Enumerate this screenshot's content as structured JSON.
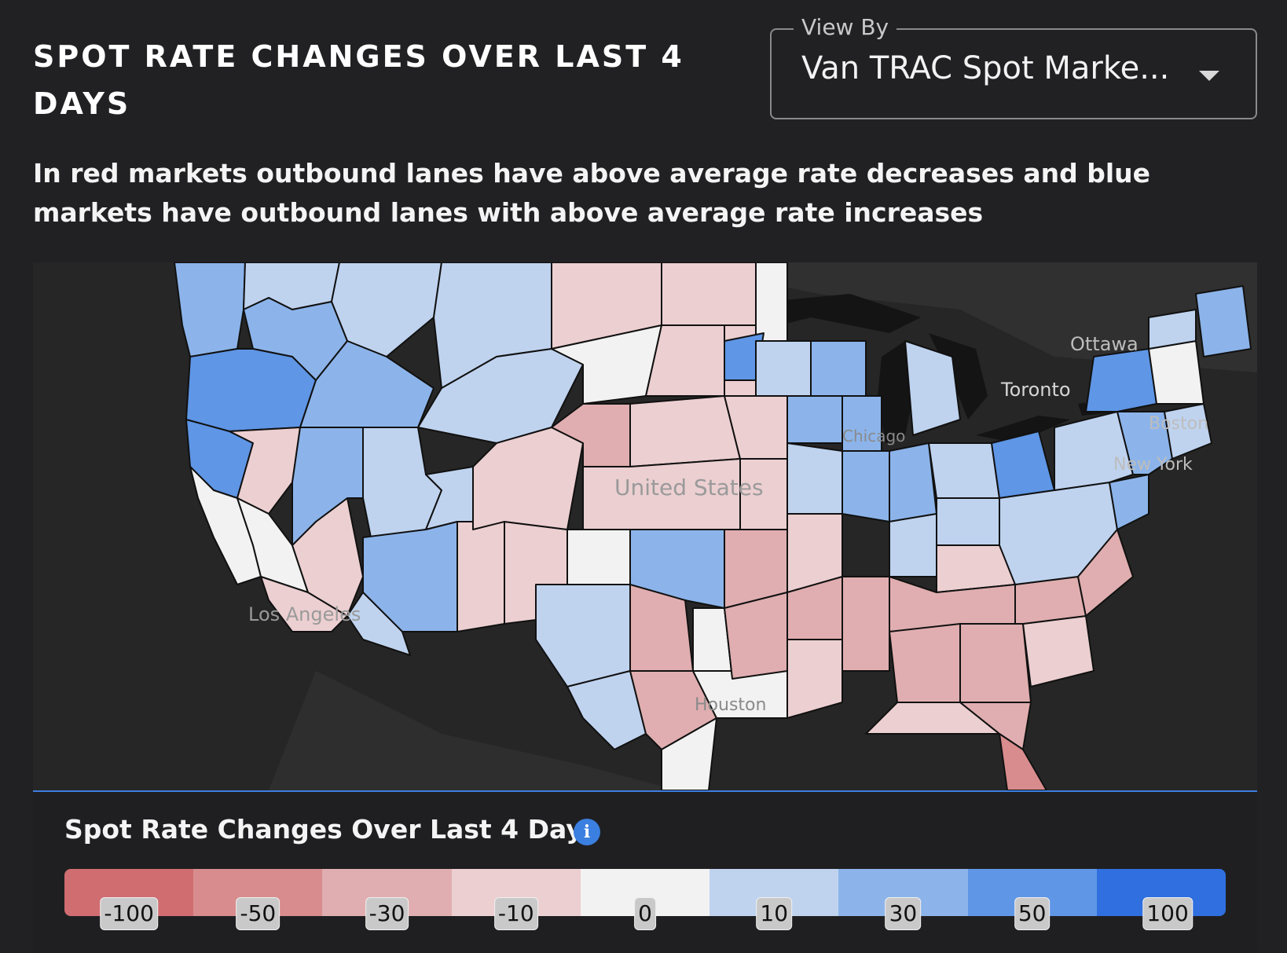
{
  "header": {
    "title": "SPOT RATE CHANGES OVER LAST 4 DAYS",
    "subtitle": "In red markets outbound lanes have above average rate decreases and blue markets have outbound lanes with above average rate increases"
  },
  "view_by": {
    "label": "View By",
    "value": "Van TRAC Spot Marke...",
    "icon": "chevron-down-icon"
  },
  "map": {
    "labels": {
      "ottawa": "Ottawa",
      "toronto": "Toronto",
      "boston": "Boston",
      "new_york": "New York",
      "united_states": "United States",
      "los_angeles": "Los Angeles",
      "houston": "Houston",
      "chicago": "Chicago"
    },
    "colors": {
      "water": "#262626",
      "land": "#333333",
      "border": "#111111"
    }
  },
  "legend": {
    "title": "Spot Rate Changes Over Last 4 Days",
    "info_icon": "info-icon",
    "stops": [
      {
        "label": "-100",
        "color": "#cf6d71"
      },
      {
        "label": "-50",
        "color": "#d88c8d"
      },
      {
        "label": "-30",
        "color": "#e0aeb0"
      },
      {
        "label": "-10",
        "color": "#eccfd1"
      },
      {
        "label": "0",
        "color": "#f2f2f2"
      },
      {
        "label": "10",
        "color": "#bfd3ef"
      },
      {
        "label": "30",
        "color": "#8cb4ea"
      },
      {
        "label": "50",
        "color": "#5f96e6"
      },
      {
        "label": "100",
        "color": "#2f6fe0"
      }
    ]
  }
}
